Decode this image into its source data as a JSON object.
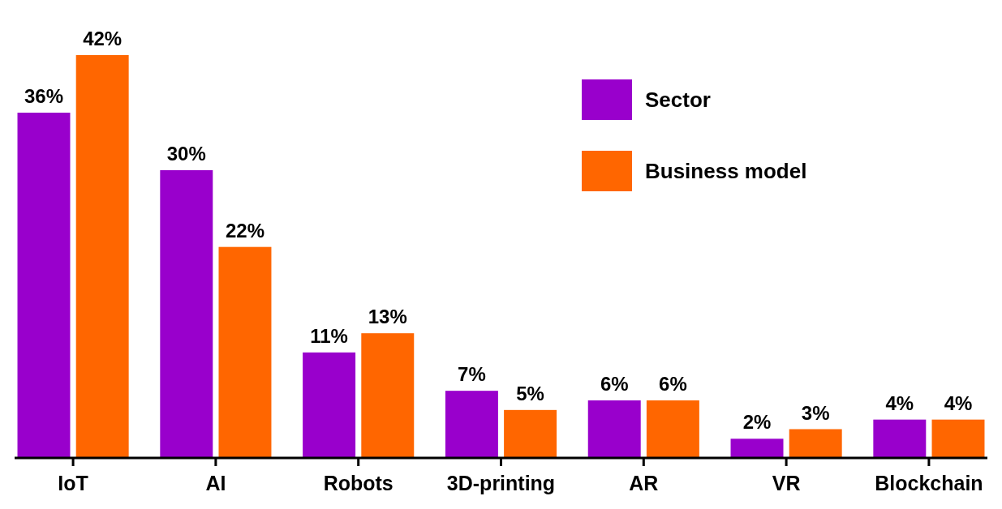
{
  "chart_data": {
    "type": "bar",
    "categories": [
      "IoT",
      "AI",
      "Robots",
      "3D-printing",
      "AR",
      "VR",
      "Blockchain"
    ],
    "series": [
      {
        "name": "Sector",
        "color": "#9900cc",
        "values": [
          36,
          30,
          11,
          7,
          6,
          2,
          4
        ],
        "value_labels": [
          "36%",
          "30%",
          "11%",
          "7%",
          "6%",
          "2%",
          "4%"
        ]
      },
      {
        "name": "Business model",
        "color": "#ff6600",
        "values": [
          42,
          22,
          13,
          5,
          6,
          3,
          4
        ],
        "value_labels": [
          "42%",
          "22%",
          "13%",
          "5%",
          "6%",
          "3%",
          "4%"
        ]
      }
    ],
    "legend": "top right",
    "grid": false
  }
}
